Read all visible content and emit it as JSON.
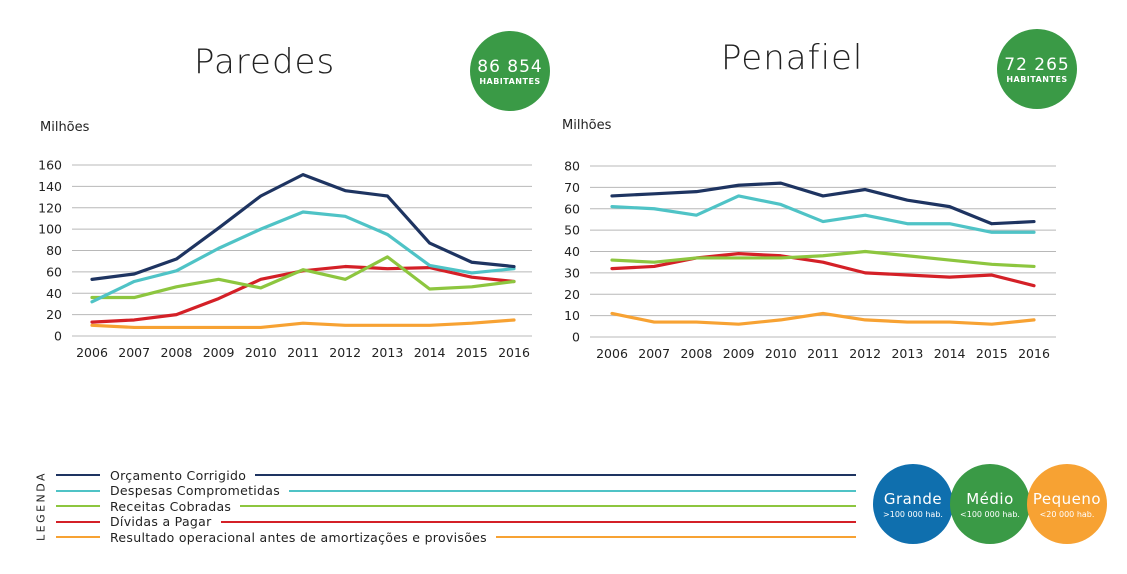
{
  "legend": {
    "title": "LEGENDA",
    "items": [
      {
        "label": "Orçamento Corrigido",
        "color": "#1e3461"
      },
      {
        "label": "Despesas Comprometidas",
        "color": "#4fc3c6"
      },
      {
        "label": "Receitas Cobradas",
        "color": "#8dc63f"
      },
      {
        "label": "Dívidas a Pagar",
        "color": "#d42027"
      },
      {
        "label": "Resultado operacional antes de amortizações e provisões",
        "color": "#f7a233"
      }
    ]
  },
  "size_scale": [
    {
      "name": "Grande",
      "range": ">100 000 hab.",
      "color": "#0f6fae"
    },
    {
      "name": "Médio",
      "range": "<100 000 hab.",
      "color": "#3a9a46"
    },
    {
      "name": "Pequeno",
      "range": "<20 000 hab.",
      "color": "#f7a233"
    }
  ],
  "chart_data": [
    {
      "type": "line",
      "title": "Paredes",
      "population": "86 854",
      "population_label": "HABITANTES",
      "badge_color": "#3a9a46",
      "unit": "Milhões",
      "ylim": [
        0,
        160
      ],
      "yticks": [
        0,
        20,
        40,
        60,
        80,
        100,
        120,
        140,
        160
      ],
      "grid": true,
      "x": [
        "2006",
        "2007",
        "2008",
        "2009",
        "2010",
        "2011",
        "2012",
        "2013",
        "2014",
        "2015",
        "2016"
      ],
      "series": [
        {
          "name": "Orçamento Corrigido",
          "color": "#1e3461",
          "values": [
            53,
            58,
            72,
            101,
            131,
            151,
            136,
            131,
            87,
            69,
            65
          ]
        },
        {
          "name": "Despesas Comprometidas",
          "color": "#4fc3c6",
          "values": [
            32,
            51,
            61,
            82,
            100,
            116,
            112,
            95,
            66,
            59,
            63
          ]
        },
        {
          "name": "Receitas Cobradas",
          "color": "#8dc63f",
          "values": [
            36,
            36,
            46,
            53,
            45,
            62,
            53,
            74,
            44,
            46,
            51
          ]
        },
        {
          "name": "Dívidas a Pagar",
          "color": "#d42027",
          "values": [
            13,
            15,
            20,
            35,
            53,
            61,
            65,
            63,
            64,
            55,
            51
          ]
        },
        {
          "name": "Resultado operacional antes de amortizações e provisões",
          "color": "#f7a233",
          "values": [
            10,
            8,
            8,
            8,
            8,
            12,
            10,
            10,
            10,
            12,
            15
          ]
        }
      ]
    },
    {
      "type": "line",
      "title": "Penafiel",
      "population": "72 265",
      "population_label": "HABITANTES",
      "badge_color": "#3a9a46",
      "unit": "Milhões",
      "ylim": [
        0,
        80
      ],
      "yticks": [
        0,
        10,
        20,
        30,
        40,
        50,
        60,
        70,
        80
      ],
      "grid": true,
      "x": [
        "2006",
        "2007",
        "2008",
        "2009",
        "2010",
        "2011",
        "2012",
        "2013",
        "2014",
        "2015",
        "2016"
      ],
      "series": [
        {
          "name": "Orçamento Corrigido",
          "color": "#1e3461",
          "values": [
            66,
            67,
            68,
            71,
            72,
            66,
            69,
            64,
            61,
            53,
            54
          ]
        },
        {
          "name": "Despesas Comprometidas",
          "color": "#4fc3c6",
          "values": [
            61,
            60,
            57,
            66,
            62,
            54,
            57,
            53,
            53,
            49,
            49
          ]
        },
        {
          "name": "Receitas Cobradas",
          "color": "#8dc63f",
          "values": [
            36,
            35,
            37,
            37,
            37,
            38,
            40,
            38,
            36,
            34,
            33
          ]
        },
        {
          "name": "Dívidas a Pagar",
          "color": "#d42027",
          "values": [
            32,
            33,
            37,
            39,
            38,
            35,
            30,
            29,
            28,
            29,
            24
          ]
        },
        {
          "name": "Resultado operacional antes de amortizações e provisões",
          "color": "#f7a233",
          "values": [
            11,
            7,
            7,
            6,
            8,
            11,
            8,
            7,
            7,
            6,
            8
          ]
        }
      ]
    }
  ]
}
